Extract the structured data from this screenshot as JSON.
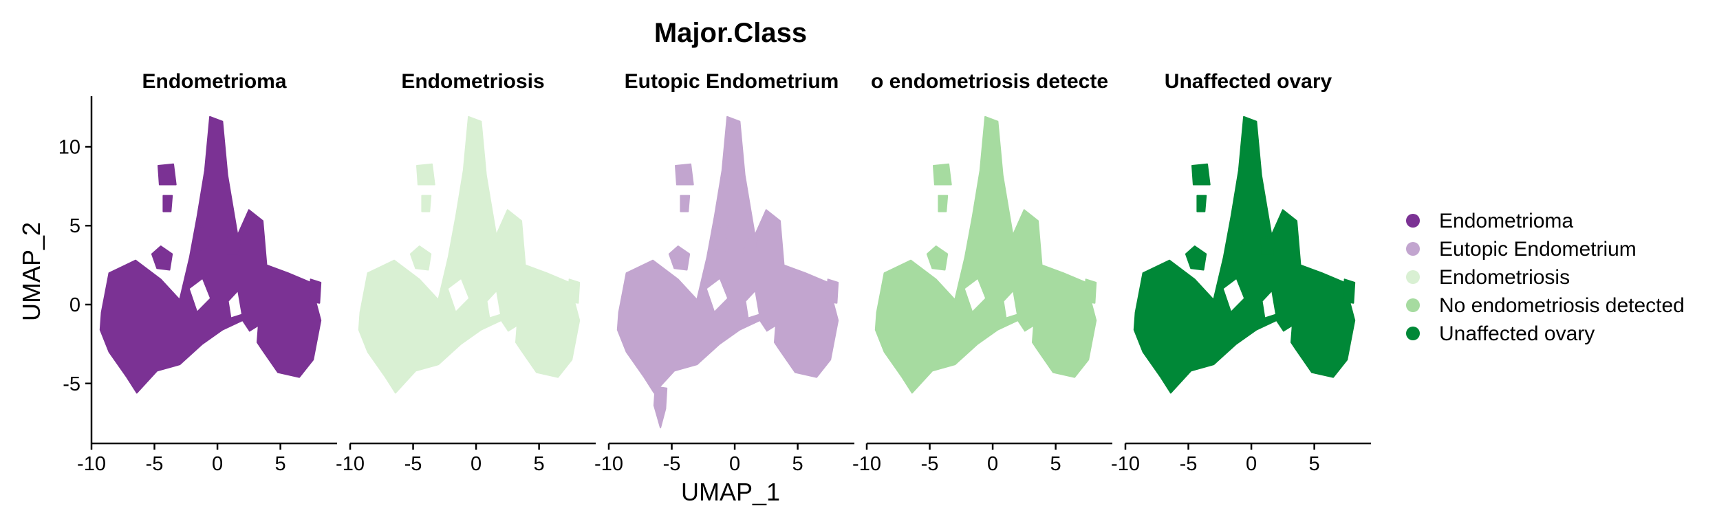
{
  "chart_data": {
    "type": "scatter",
    "title": "Major.Class",
    "xlabel": "UMAP_1",
    "ylabel": "UMAP_2",
    "xlim": [
      -10,
      9.5
    ],
    "ylim": [
      -8.8,
      13.2
    ],
    "x_ticks": [
      -10,
      -5,
      0,
      5
    ],
    "y_ticks": [
      10,
      5,
      0,
      -5
    ],
    "x_tick_labels": [
      "-10",
      "-5",
      "0",
      "5"
    ],
    "y_tick_labels": [
      "10",
      "5",
      "0",
      "-5"
    ],
    "grid": false,
    "legend_position": "right",
    "panels": [
      {
        "label": "Endometrioma",
        "color": "#7B3294"
      },
      {
        "label": "Endometriosis",
        "color": "#D9F0D3"
      },
      {
        "label": "Eutopic Endometrium",
        "color": "#C2A5CF"
      },
      {
        "label": "No endometriosis detected",
        "display_label": "o endometriosis detecte",
        "color": "#A6DBA0"
      },
      {
        "label": "Unaffected ovary",
        "color": "#008837"
      }
    ],
    "legend": [
      {
        "label": "Endometrioma",
        "color": "#7B3294"
      },
      {
        "label": "Eutopic Endometrium",
        "color": "#C2A5CF"
      },
      {
        "label": "Endometriosis",
        "color": "#D9F0D3"
      },
      {
        "label": "No endometriosis detected",
        "color": "#A6DBA0"
      },
      {
        "label": "Unaffected ovary",
        "color": "#008837"
      }
    ],
    "embedding_shape": {
      "main_body": [
        [
          -9.2,
          -0.5
        ],
        [
          -8.6,
          2
        ],
        [
          -6.5,
          2.8
        ],
        [
          -4.5,
          1.6
        ],
        [
          -3,
          0.3
        ],
        [
          -2.2,
          3
        ],
        [
          -1.6,
          5.6
        ],
        [
          -1,
          8.5
        ],
        [
          -0.6,
          11.9
        ],
        [
          0.4,
          11.6
        ],
        [
          0.8,
          8.2
        ],
        [
          1.6,
          4.4
        ],
        [
          2.5,
          6
        ],
        [
          3.6,
          5.3
        ],
        [
          3.9,
          2.5
        ],
        [
          5.6,
          2
        ],
        [
          7.4,
          1.4
        ],
        [
          8.2,
          -1
        ],
        [
          7.6,
          -3.5
        ],
        [
          6.5,
          -4.6
        ],
        [
          4.8,
          -4.3
        ],
        [
          3.5,
          -2.8
        ],
        [
          2,
          -1
        ],
        [
          0.4,
          -1.6
        ],
        [
          -1.2,
          -2.5
        ],
        [
          -3,
          -3.8
        ],
        [
          -4.8,
          -4.2
        ],
        [
          -6.4,
          -5.6
        ],
        [
          -7.2,
          -4.6
        ],
        [
          -8.6,
          -3
        ],
        [
          -9.3,
          -1.6
        ]
      ],
      "islands": [
        [
          [
            -4.7,
            8.8
          ],
          [
            -3.5,
            8.9
          ],
          [
            -3.3,
            7.6
          ],
          [
            -4.6,
            7.6
          ]
        ],
        [
          [
            -4.3,
            6.9
          ],
          [
            -3.6,
            6.9
          ],
          [
            -3.7,
            5.9
          ],
          [
            -4.3,
            5.9
          ]
        ],
        [
          [
            -5.2,
            3.2
          ],
          [
            -4.5,
            3.7
          ],
          [
            -3.6,
            3.2
          ],
          [
            -3.8,
            2.2
          ],
          [
            -4.8,
            2.3
          ]
        ],
        [
          [
            -1.6,
            4.9
          ],
          [
            -0.6,
            5
          ],
          [
            -0.8,
            3.4
          ],
          [
            -1.8,
            3.5
          ]
        ],
        [
          [
            0.8,
            4.2
          ],
          [
            1.8,
            4.3
          ],
          [
            1.7,
            3.1
          ],
          [
            0.7,
            3.1
          ]
        ],
        [
          [
            7.4,
            1.6
          ],
          [
            8.2,
            1.4
          ],
          [
            8.1,
            0.1
          ],
          [
            7.3,
            0.2
          ]
        ]
      ],
      "eutopic_tail": [
        [
          -6.3,
          -5.2
        ],
        [
          -5.4,
          -5.3
        ],
        [
          -5.5,
          -6.6
        ],
        [
          -5.9,
          -7.8
        ],
        [
          -6.4,
          -6.4
        ]
      ]
    }
  }
}
